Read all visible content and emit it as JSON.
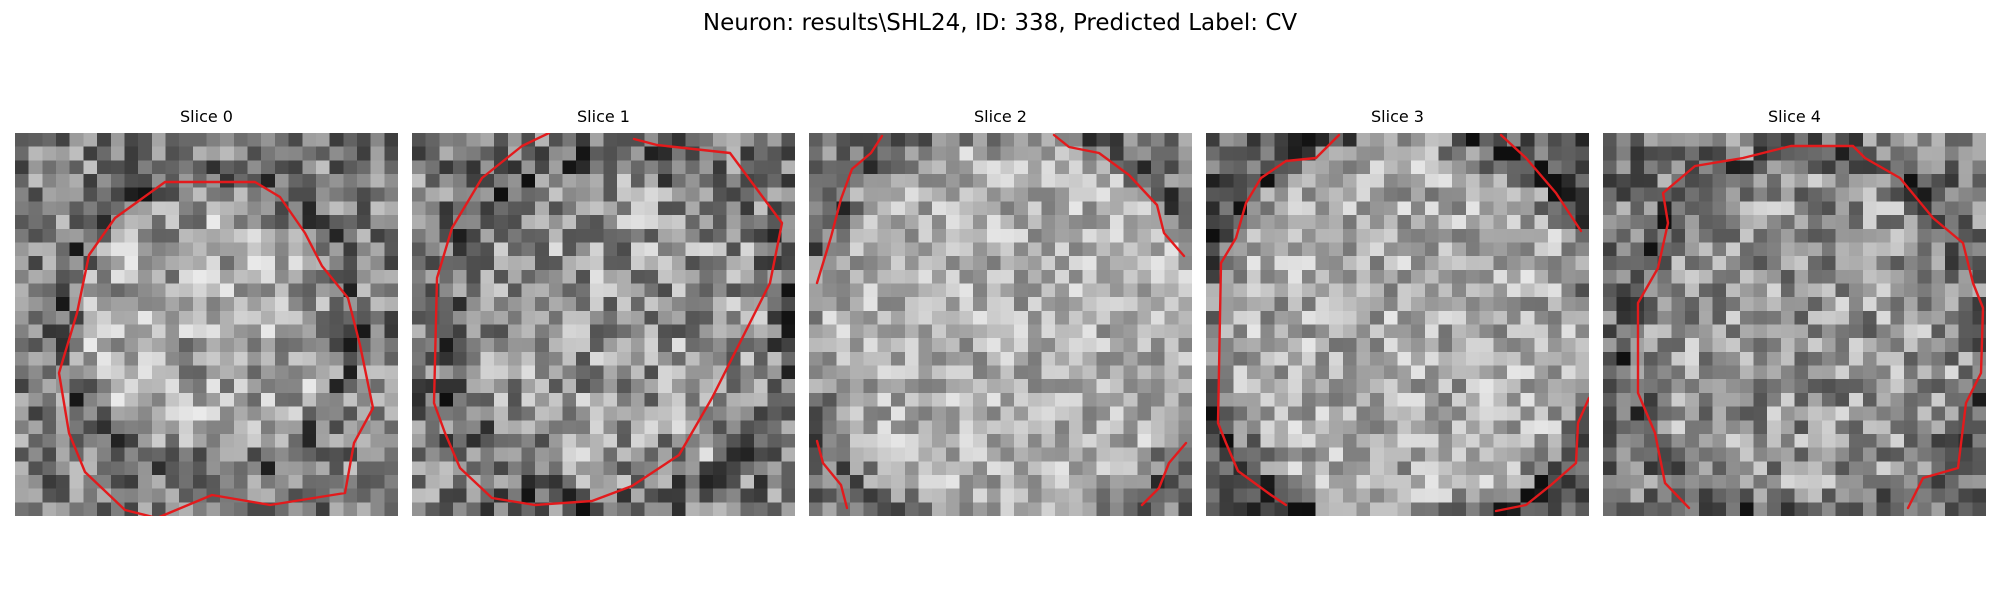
{
  "figure": {
    "suptitle": "Neuron: results\\SHL24, ID: 338, Predicted Label: CV",
    "contour_color": "#e31a1c",
    "colormap": "gray"
  },
  "slices": [
    {
      "title": "Slice 0",
      "contour_style": "closed-round"
    },
    {
      "title": "Slice 1",
      "contour_style": "closed-round-large"
    },
    {
      "title": "Slice 2",
      "contour_style": "open-edges"
    },
    {
      "title": "Slice 3",
      "contour_style": "open-edges"
    },
    {
      "title": "Slice 4",
      "contour_style": "open-bottom"
    }
  ]
}
